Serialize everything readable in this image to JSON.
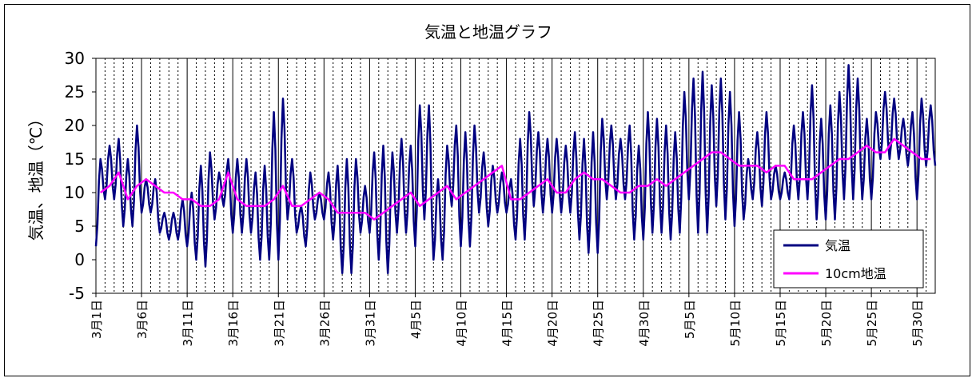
{
  "chart_data": {
    "type": "line",
    "title": "気温と地温グラフ",
    "ylabel": "気温、地温（℃）",
    "xlabel": "",
    "ylim": [
      -5,
      30
    ],
    "yticks": [
      "-5",
      "0",
      "5",
      "10",
      "15",
      "20",
      "25",
      "30"
    ],
    "xtick_labels": [
      "3月1日",
      "3月6日",
      "3月11日",
      "3月16日",
      "3月21日",
      "3月26日",
      "3月31日",
      "4月5日",
      "4月10日",
      "4月15日",
      "4月20日",
      "4月25日",
      "4月30日",
      "5月5日",
      "5月10日",
      "5月15日",
      "5月20日",
      "5月25日",
      "5月30日"
    ],
    "start_date": "3月1日",
    "n_days": 92,
    "grid": "vertical",
    "legend": "bottom-right",
    "series": [
      {
        "name": "気温",
        "color": "#000080",
        "daily_min": [
          2,
          9,
          9,
          5,
          5,
          7,
          7,
          4,
          3,
          3,
          2,
          0,
          -1,
          6,
          8,
          4,
          4,
          4,
          0,
          0,
          0,
          6,
          4,
          2,
          6,
          6,
          3,
          -2,
          -2,
          4,
          4,
          0,
          -2,
          4,
          4,
          2,
          6,
          0,
          0,
          8,
          2,
          2,
          7,
          5,
          7,
          7,
          3,
          3,
          8,
          7,
          7,
          7,
          7,
          3,
          1,
          1,
          9,
          9,
          9,
          3,
          3,
          4,
          4,
          3,
          4,
          9,
          4,
          4,
          8,
          6,
          5,
          6,
          9,
          8,
          9,
          9,
          9,
          9,
          9,
          6,
          6,
          6,
          9,
          9,
          9,
          9,
          15,
          15,
          15,
          14,
          9,
          14
        ],
        "daily_max": [
          15,
          17,
          18,
          15,
          20,
          12,
          12,
          7,
          7,
          9,
          10,
          14,
          16,
          13,
          15,
          15,
          15,
          13,
          14,
          22,
          24,
          15,
          8,
          13,
          10,
          13,
          14,
          15,
          15,
          11,
          16,
          17,
          16,
          18,
          17,
          23,
          23,
          12,
          17,
          20,
          19,
          20,
          16,
          14,
          13,
          12,
          18,
          22,
          19,
          18,
          18,
          17,
          19,
          18,
          19,
          21,
          20,
          18,
          20,
          17,
          22,
          21,
          20,
          19,
          25,
          27,
          28,
          26,
          27,
          25,
          22,
          15,
          19,
          22,
          14,
          13,
          20,
          22,
          26,
          21,
          23,
          25,
          29,
          27,
          21,
          22,
          25,
          24,
          21,
          22,
          24,
          23
        ]
      },
      {
        "name": "10cm地温",
        "color": "#ff00ff",
        "daily": [
          10,
          11,
          13,
          9,
          11,
          12,
          11,
          10,
          10,
          9,
          9,
          8,
          8,
          9,
          13,
          9,
          8,
          8,
          8,
          9,
          11,
          8,
          8,
          9,
          10,
          9,
          7,
          7,
          7,
          7,
          6,
          7,
          8,
          9,
          10,
          8,
          9,
          10,
          11,
          9,
          10,
          11,
          12,
          13,
          14,
          9,
          9,
          10,
          11,
          12,
          10,
          10,
          12,
          13,
          12,
          12,
          11,
          10,
          10,
          11,
          11,
          12,
          11,
          12,
          13,
          14,
          15,
          16,
          16,
          15,
          14,
          14,
          14,
          13,
          14,
          14,
          12,
          12,
          12,
          13,
          14,
          15,
          15,
          16,
          17,
          16,
          16,
          18,
          17,
          16,
          15,
          15
        ]
      }
    ]
  }
}
